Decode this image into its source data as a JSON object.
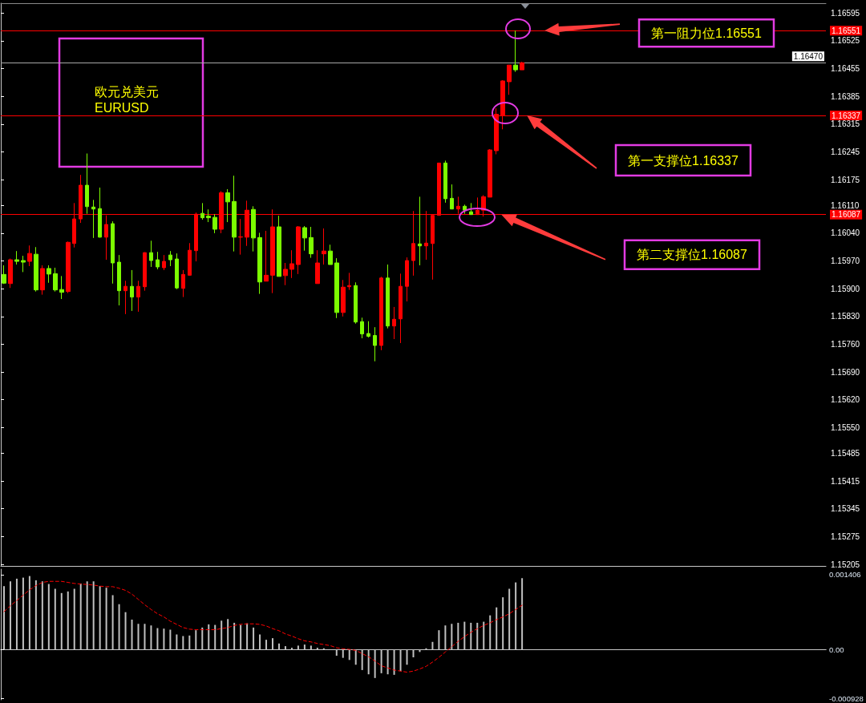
{
  "chart_data": [
    {
      "type": "candlestick",
      "title": "欧元兑美元",
      "subtitle": "EURUSD",
      "categories": [
        null,
        null,
        null,
        null,
        null,
        null,
        null,
        null,
        null,
        null,
        null,
        null,
        null,
        null,
        null,
        null,
        null,
        null,
        null,
        null,
        null,
        null,
        null,
        null,
        null,
        null,
        null,
        null,
        null,
        null,
        null,
        null,
        null,
        null,
        null,
        null,
        null,
        null,
        null,
        null,
        null,
        null,
        null,
        null,
        null,
        null,
        null,
        null,
        null,
        null,
        null,
        null,
        null,
        null,
        null,
        null,
        null,
        null,
        null,
        null,
        null,
        null,
        null,
        null,
        null,
        null,
        null,
        null,
        null,
        null,
        null,
        null,
        null,
        null,
        null,
        null,
        null,
        null,
        null,
        null,
        null,
        null,
        null,
        null,
        null,
        null,
        null,
        null,
        null,
        null,
        null,
        null,
        null,
        null,
        null,
        null,
        null,
        null,
        null,
        null,
        null,
        null,
        null,
        null,
        null,
        null,
        null,
        null,
        null,
        null,
        null,
        null,
        null,
        null,
        null,
        null,
        null,
        null,
        null,
        null,
        null,
        null,
        null,
        null,
        null,
        null,
        null,
        null,
        null
      ],
      "ohlc": [
        [
          1.15936,
          1.15959,
          1.15912,
          1.15914
        ],
        [
          1.15913,
          1.15976,
          1.15902,
          1.15973
        ],
        [
          1.15973,
          1.15995,
          1.15961,
          1.15969
        ],
        [
          1.15971,
          1.15983,
          1.15942,
          1.15967
        ],
        [
          1.15969,
          1.16009,
          1.15957,
          1.15989
        ],
        [
          1.15987,
          1.16005,
          1.15893,
          1.15897
        ],
        [
          1.15897,
          1.15959,
          1.15885,
          1.15951
        ],
        [
          1.15951,
          1.15959,
          1.15915,
          1.15937
        ],
        [
          1.15938,
          1.15953,
          1.15893,
          1.15897
        ],
        [
          1.15898,
          1.15932,
          1.15874,
          1.15891
        ],
        [
          1.15893,
          1.16019,
          1.15889,
          1.16017
        ],
        [
          1.16014,
          1.16116,
          1.16004,
          1.16076
        ],
        [
          1.16076,
          1.16187,
          1.16066,
          1.16161
        ],
        [
          1.16161,
          1.16241,
          1.16089,
          1.16107
        ],
        [
          1.16106,
          1.16124,
          1.16028,
          1.16101
        ],
        [
          1.16102,
          1.16155,
          1.16029,
          1.1603
        ],
        [
          1.1603,
          1.16085,
          1.15973,
          1.16062
        ],
        [
          1.16064,
          1.1607,
          1.15913,
          1.15965
        ],
        [
          1.15967,
          1.15985,
          1.15858,
          1.15895
        ],
        [
          1.15895,
          1.1592,
          1.15836,
          1.15906
        ],
        [
          1.15906,
          1.15947,
          1.15844,
          1.15879
        ],
        [
          1.15879,
          1.1592,
          1.15842,
          1.15906
        ],
        [
          1.15905,
          1.15992,
          1.15895,
          1.15991
        ],
        [
          1.15991,
          1.16021,
          1.15955,
          1.15971
        ],
        [
          1.15973,
          1.15993,
          1.15949,
          1.15955
        ],
        [
          1.15953,
          1.15985,
          1.15947,
          1.15969
        ],
        [
          1.15985,
          1.15995,
          1.15957,
          1.15973
        ],
        [
          1.15975,
          1.15989,
          1.15899,
          1.15902
        ],
        [
          1.15901,
          1.15947,
          1.15879,
          1.15936
        ],
        [
          1.15934,
          1.16015,
          1.15933,
          1.15997
        ],
        [
          1.15996,
          1.16092,
          1.15969,
          1.16088
        ],
        [
          1.1609,
          1.16116,
          1.16074,
          1.16079
        ],
        [
          1.16083,
          1.161,
          1.16068,
          1.16079
        ],
        [
          1.1608,
          1.16088,
          1.1604,
          1.1605
        ],
        [
          1.1605,
          1.16146,
          1.1604,
          1.16142
        ],
        [
          1.16142,
          1.16151,
          1.16068,
          1.16119
        ],
        [
          1.1612,
          1.16185,
          1.15994,
          1.1603
        ],
        [
          1.1603,
          1.16076,
          1.15986,
          1.16031
        ],
        [
          1.1603,
          1.16122,
          1.16008,
          1.16098
        ],
        [
          1.161,
          1.16108,
          1.15994,
          1.16028
        ],
        [
          1.16029,
          1.16041,
          1.15887,
          1.15917
        ],
        [
          1.15919,
          1.16046,
          1.15919,
          1.15934
        ],
        [
          1.15934,
          1.161,
          1.15889,
          1.16056
        ],
        [
          1.16056,
          1.16084,
          1.15931,
          1.15931
        ],
        [
          1.15933,
          1.15965,
          1.15909,
          1.15949
        ],
        [
          1.15949,
          1.15997,
          1.15927,
          1.15963
        ],
        [
          1.15961,
          1.16058,
          1.15937,
          1.16056
        ],
        [
          1.16054,
          1.16058,
          1.15996,
          1.16028
        ],
        [
          1.16029,
          1.16056,
          1.15978,
          1.15988
        ],
        [
          1.15913,
          1.15997,
          1.15913,
          1.15965
        ],
        [
          1.15988,
          1.16052,
          1.15961,
          1.15995
        ],
        [
          1.15995,
          1.16011,
          1.15961,
          1.15961
        ],
        [
          1.15965,
          1.15977,
          1.15826,
          1.1584
        ],
        [
          1.1584,
          1.15922,
          1.1583,
          1.15904
        ],
        [
          1.15905,
          1.1594,
          1.15897,
          1.15908
        ],
        [
          1.15908,
          1.15916,
          1.15812,
          1.15816
        ],
        [
          1.15817,
          1.15827,
          1.15775,
          1.15786
        ],
        [
          1.15787,
          1.15818,
          1.15777,
          1.1578
        ],
        [
          1.15782,
          1.15803,
          1.15717,
          1.15757
        ],
        [
          1.15757,
          1.1593,
          1.15745,
          1.15927
        ],
        [
          1.15927,
          1.15961,
          1.158,
          1.15806
        ],
        [
          1.15806,
          1.15854,
          1.15773,
          1.15823
        ],
        [
          1.15824,
          1.15938,
          1.15763,
          1.15906
        ],
        [
          1.15906,
          1.15979,
          1.15868,
          1.15971
        ],
        [
          1.15971,
          1.16096,
          1.15933,
          1.16014
        ],
        [
          1.16013,
          1.16132,
          1.15959,
          1.16008
        ],
        [
          1.16008,
          1.16096,
          1.15973,
          1.16015
        ],
        [
          1.16014,
          1.16085,
          1.15923,
          1.16085
        ],
        [
          1.16085,
          1.16217,
          1.16085,
          1.16217
        ],
        [
          1.16217,
          1.16223,
          1.16117,
          1.16127
        ],
        [
          1.16128,
          1.16163,
          1.16101,
          1.16101
        ],
        [
          1.16101,
          1.16132,
          1.16089,
          1.16108
        ],
        [
          1.16108,
          1.16112,
          1.16089,
          1.16098
        ],
        [
          1.16094,
          1.16116,
          1.16087,
          1.16087
        ],
        [
          1.16087,
          1.1613,
          1.16087,
          1.16098
        ],
        [
          1.16098,
          1.16136,
          1.16082,
          1.16132
        ],
        [
          1.16131,
          1.16252,
          1.16131,
          1.1625
        ],
        [
          1.16248,
          1.16355,
          1.16239,
          1.1634
        ],
        [
          1.16336,
          1.16426,
          1.16302,
          1.16424
        ],
        [
          1.16422,
          1.16464,
          1.16389,
          1.16464
        ],
        [
          1.16464,
          1.16551,
          1.16447,
          1.16452
        ],
        [
          1.16452,
          1.16472,
          1.16452,
          1.1647
        ],
        null,
        null,
        null,
        null,
        null,
        null,
        null,
        null,
        null,
        null,
        null,
        null,
        null,
        null,
        null,
        null,
        null,
        null,
        null,
        null,
        null,
        null,
        null,
        null,
        null,
        null,
        null,
        null,
        null,
        null,
        null,
        null,
        null,
        null,
        null,
        null,
        null,
        null,
        null,
        null,
        null,
        null,
        null,
        null,
        null,
        null,
        null
      ],
      "colors": [
        "#7cfc00",
        "#ff0000",
        "#7cfc00",
        "#7cfc00",
        "#ff0000",
        "#7cfc00",
        "#ff0000",
        "#7cfc00",
        "#7cfc00",
        "#7cfc00",
        "#ff0000",
        "#ff0000",
        "#ff0000",
        "#7cfc00",
        "#7cfc00",
        "#7cfc00",
        "#ff0000",
        "#7cfc00",
        "#7cfc00",
        "#ff0000",
        "#7cfc00",
        "#ff0000",
        "#ff0000",
        "#7cfc00",
        "#7cfc00",
        "#ff0000",
        "#7cfc00",
        "#7cfc00",
        "#ff0000",
        "#ff0000",
        "#ff0000",
        "#7cfc00",
        "#7cfc00",
        "#7cfc00",
        "#ff0000",
        "#7cfc00",
        "#7cfc00",
        "#ff0000",
        "#ff0000",
        "#7cfc00",
        "#7cfc00",
        "#ff0000",
        "#ff0000",
        "#7cfc00",
        "#ff0000",
        "#ff0000",
        "#ff0000",
        "#7cfc00",
        "#7cfc00",
        "#ff0000",
        "#ff0000",
        "#7cfc00",
        "#7cfc00",
        "#ff0000",
        "#ff0000",
        "#7cfc00",
        "#7cfc00",
        "#7cfc00",
        "#7cfc00",
        "#ff0000",
        "#7cfc00",
        "#ff0000",
        "#ff0000",
        "#ff0000",
        "#ff0000",
        "#7cfc00",
        "#ff0000",
        "#ff0000",
        "#ff0000",
        "#7cfc00",
        "#7cfc00",
        "#ff0000",
        "#7cfc00",
        "#7cfc00",
        "#ff0000",
        "#ff0000",
        "#ff0000",
        "#ff0000",
        "#ff0000",
        "#ff0000",
        "#7cfc00",
        "#ff0000",
        null,
        null,
        null,
        null,
        null,
        null,
        null,
        null,
        null,
        null,
        null,
        null,
        null,
        null,
        null,
        null,
        null,
        null,
        null,
        null,
        null,
        null,
        null,
        null,
        null,
        null,
        null,
        null,
        null,
        null,
        null,
        null,
        null,
        null,
        null,
        null,
        null,
        null,
        null,
        null,
        null,
        null,
        null,
        null,
        null,
        null,
        null
      ],
      "ylim": [
        1.152,
        1.1662
      ],
      "yticks": [
        1.16595,
        1.16525,
        1.16455,
        1.16385,
        1.16315,
        1.16245,
        1.16175,
        {
          "value": 1.1611,
          "label": "1.16110"
        },
        {
          "value": 1.1604,
          "label": "1.16040"
        },
        {
          "value": 1.1597,
          "label": "1.15970"
        },
        {
          "value": 1.159,
          "label": "1.15900"
        },
        {
          "value": 1.1583,
          "label": "1.15830"
        },
        {
          "value": 1.1576,
          "label": "1.15760"
        },
        {
          "value": 1.1569,
          "label": "1.15690"
        },
        {
          "value": 1.1562,
          "label": "1.15620"
        },
        {
          "value": 1.1555,
          "label": "1.15550"
        },
        1.15485,
        1.15415,
        1.15345,
        1.15275,
        1.15205
      ],
      "tick_labels": "y",
      "ref_lines": [
        {
          "axis": "y",
          "value": 1.16551,
          "label": "1.16551",
          "color": "#ff0000"
        },
        {
          "axis": "y",
          "value": 1.1647,
          "label": "1.16470",
          "color": "#a8a8a8"
        },
        {
          "axis": "y",
          "value": 1.16337,
          "label": "1.16337",
          "color": "#ff0000"
        },
        {
          "axis": "y",
          "value": 1.16087,
          "label": "1.16087",
          "color": "#ff0000"
        }
      ],
      "annotations": [
        {
          "text": "第一阻力位1.16551",
          "y": 1.16551
        },
        {
          "text": "第一支撑位1.16337",
          "y": 1.16337
        },
        {
          "text": "第二支撑位1.16087",
          "y": 1.16087
        }
      ]
    },
    {
      "type": "bar",
      "categories": [
        null,
        null,
        null,
        null,
        null,
        null,
        null,
        null,
        null,
        null,
        null,
        null,
        null,
        null,
        null,
        null,
        null,
        null,
        null,
        null,
        null,
        null,
        null,
        null,
        null,
        null,
        null,
        null,
        null,
        null,
        null,
        null,
        null,
        null,
        null,
        null,
        null,
        null,
        null,
        null,
        null,
        null,
        null,
        null,
        null,
        null,
        null,
        null,
        null,
        null,
        null,
        null,
        null,
        null,
        null,
        null,
        null,
        null,
        null,
        null,
        null,
        null,
        null,
        null,
        null,
        null,
        null,
        null,
        null,
        null,
        null,
        null,
        null,
        null,
        null,
        null,
        null,
        null,
        null,
        null,
        null,
        null,
        null,
        null,
        null,
        null,
        null,
        null,
        null,
        null,
        null,
        null,
        null,
        null,
        null,
        null,
        null,
        null,
        null,
        null,
        null,
        null,
        null,
        null,
        null,
        null,
        null,
        null,
        null,
        null,
        null,
        null,
        null,
        null,
        null,
        null,
        null,
        null,
        null,
        null,
        null,
        null,
        null,
        null,
        null,
        null,
        null,
        null,
        null
      ],
      "series": [
        {
          "color": "#c0c0c0",
          "values": [
            0.00119,
            0.00128,
            0.00133,
            0.00135,
            0.00138,
            0.0013,
            0.00128,
            0.00123,
            0.00114,
            0.00106,
            0.00109,
            0.00114,
            0.00124,
            0.00128,
            0.00128,
            0.00119,
            0.00116,
            0.00102,
            0.00085,
            0.0007,
            0.00056,
            0.00048,
            0.00048,
            0.00045,
            0.0004,
            0.00039,
            0.00037,
            0.00028,
            0.00025,
            0.00026,
            0.00036,
            0.00041,
            0.00047,
            0.00046,
            0.00054,
            0.00057,
            0.0005,
            0.00046,
            0.00049,
            0.00041,
            0.00028,
            0.00018,
            0.00021,
            0.00011,
            6e-05,
            3e-05,
            7e-05,
            9e-05,
            7e-05,
            3e-05,
            2e-05,
            0,
            -0.00012,
            -0.00016,
            -0.0002,
            -0.00029,
            -0.00039,
            -0.00047,
            -0.00054,
            -0.00045,
            -0.00047,
            -0.00048,
            -0.00041,
            -0.00029,
            -0.00015,
            -5e-05,
            2e-05,
            0.00014,
            0.00036,
            0.00045,
            0.00048,
            0.0005,
            0.00052,
            0.0005,
            0.0005,
            0.00052,
            0.00064,
            0.00079,
            0.00098,
            0.00114,
            0.00126,
            0.00134,
            null,
            null,
            null,
            null,
            null,
            null,
            null,
            null,
            null,
            null,
            null,
            null,
            null,
            null,
            null,
            null,
            null,
            null,
            null,
            null,
            null,
            null,
            null,
            null,
            null,
            null,
            null,
            null,
            null,
            null,
            null,
            null,
            null,
            null,
            null,
            null,
            null,
            null,
            null,
            null,
            null,
            null,
            null,
            null,
            null,
            null,
            null
          ]
        },
        {
          "type": "line",
          "color": "#ff0000",
          "line_style": "dashed",
          "marker": "none",
          "values": [
            0.00071,
            0.00082,
            0.00092,
            0.00102,
            0.00112,
            0.0012,
            0.00126,
            0.00128,
            0.00128,
            0.00128,
            0.00126,
            0.00124,
            0.00123,
            0.00122,
            0.00121,
            0.00119,
            0.00118,
            0.00118,
            0.00115,
            0.00111,
            0.00104,
            0.00094,
            0.00084,
            0.00075,
            0.00067,
            0.00061,
            0.00053,
            0.00047,
            0.00041,
            0.00038,
            0.00037,
            0.00037,
            0.00037,
            0.00037,
            0.00039,
            0.00041,
            0.00045,
            0.00047,
            0.00048,
            0.00048,
            0.00047,
            0.00044,
            0.00039,
            0.00035,
            0.00029,
            0.00025,
            0.0002,
            0.00016,
            0.00014,
            0.00011,
            9e-05,
            7e-05,
            3e-05,
            1e-05,
            0,
            -2e-05,
            -8e-05,
            -0.00014,
            -0.00022,
            -0.00031,
            -0.00035,
            -0.00039,
            -0.00041,
            -0.00043,
            -0.00041,
            -0.00037,
            -0.00032,
            -0.00024,
            -0.00015,
            -5e-05,
            5e-05,
            0.00015,
            0.00024,
            0.00032,
            0.00039,
            0.00045,
            0.0005,
            0.00056,
            0.00061,
            0.00067,
            0.00075,
            0.00083,
            null,
            null,
            null,
            null,
            null,
            null,
            null,
            null,
            null,
            null,
            null,
            null,
            null,
            null,
            null,
            null,
            null,
            null,
            null,
            null,
            null,
            null,
            null,
            null,
            null,
            null,
            null,
            null,
            null,
            null,
            null,
            null,
            null,
            null,
            null,
            null,
            null,
            null,
            null,
            null,
            null,
            null,
            null,
            null,
            null,
            null,
            null
          ]
        }
      ],
      "ylim": [
        -0.00095,
        0.00151
      ],
      "yticks": [
        0.001406,
        {
          "value": 0,
          "label": "0.00"
        },
        -0.000928
      ],
      "tick_labels": "y"
    }
  ]
}
